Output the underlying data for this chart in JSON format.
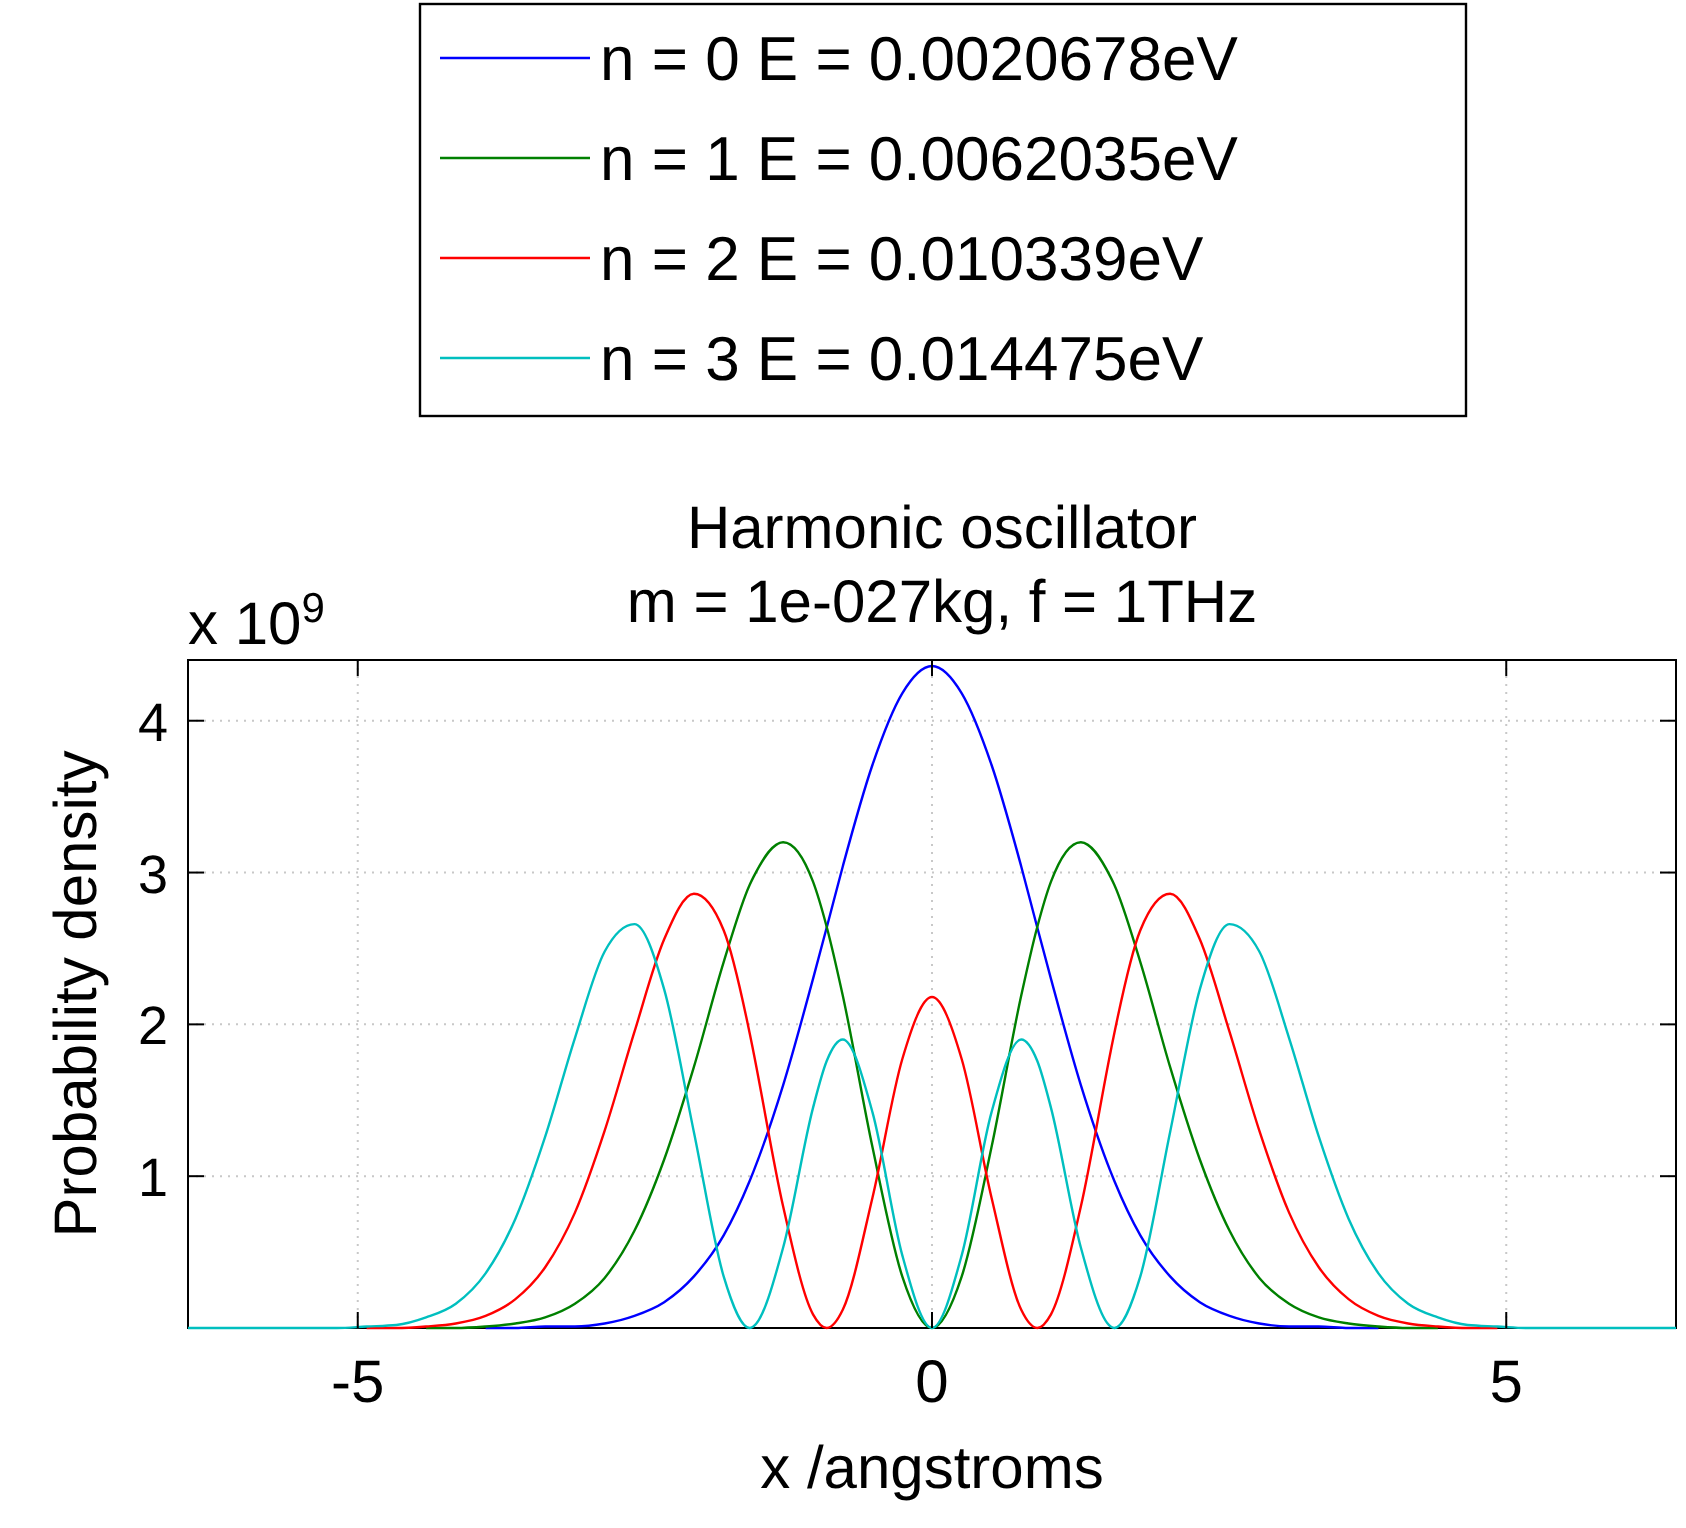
{
  "chart_data": {
    "type": "line",
    "title": "Harmonic oscillator",
    "subtitle": "m = 1e-027kg, f = 1THz",
    "xlabel": "x /angstroms",
    "ylabel": "Probability density",
    "annotations": [
      "x 10$^{9}$"
    ],
    "x": [
      -6.478,
      -5.182,
      -4.923,
      -4.664,
      -4.405,
      -4.146,
      -3.887,
      -3.627,
      -3.368,
      -3.109,
      -2.85,
      -2.591,
      -2.332,
      -2.073,
      -1.814,
      -1.587,
      -1.555,
      -1.296,
      -1.036,
      -0.916,
      -0.777,
      -0.518,
      -0.259,
      0,
      0.259,
      0.518,
      0.777,
      0.916,
      1.036,
      1.296,
      1.555,
      1.587,
      1.814,
      2.073,
      2.332,
      2.591,
      2.85,
      3.109,
      3.368,
      3.627,
      3.887,
      4.146,
      4.405,
      4.664,
      4.923,
      5.182,
      6.478
    ],
    "series": [
      {
        "name": "n = 0 E = 0.0020678eV",
        "color": "#0000ff",
        "values": [
          null,
          null,
          null,
          null,
          null,
          null,
          0,
          0,
          0.01,
          0.01,
          0.03,
          0.08,
          0.17,
          0.34,
          0.61,
          0.97,
          1.03,
          1.6,
          2.3,
          2.64,
          3.04,
          3.71,
          4.18,
          4.36,
          4.18,
          3.71,
          3.04,
          2.64,
          2.3,
          1.6,
          1.03,
          0.97,
          0.61,
          0.34,
          0.17,
          0.08,
          0.03,
          0.01,
          0.01,
          0,
          0,
          null,
          null,
          null,
          null,
          null,
          null
        ]
      },
      {
        "name": "n = 1 E = 0.0062035eV",
        "color": "#008000",
        "values": [
          null,
          null,
          null,
          null,
          0,
          0,
          0.01,
          0.03,
          0.07,
          0.16,
          0.33,
          0.64,
          1.11,
          1.72,
          2.41,
          2.92,
          2.97,
          3.2,
          2.94,
          2.64,
          2.19,
          1.19,
          0.34,
          0,
          0.34,
          1.19,
          2.19,
          2.64,
          2.94,
          3.2,
          2.97,
          2.92,
          2.41,
          1.72,
          1.11,
          0.64,
          0.33,
          0.16,
          0.07,
          0.03,
          0.01,
          0,
          0,
          null,
          null,
          null,
          null
        ]
      },
      {
        "name": "n = 2 E = 0.010339eV",
        "color": "#ff0000",
        "values": [
          null,
          null,
          0,
          0,
          0.01,
          0.03,
          0.08,
          0.19,
          0.4,
          0.76,
          1.3,
          1.95,
          2.56,
          2.86,
          2.62,
          1.94,
          1.82,
          0.8,
          0.09,
          0,
          0.12,
          0.86,
          1.77,
          2.18,
          1.77,
          0.86,
          0.12,
          0,
          0.09,
          0.8,
          1.82,
          1.94,
          2.62,
          2.86,
          2.56,
          1.95,
          1.3,
          0.76,
          0.4,
          0.19,
          0.08,
          0.03,
          0.01,
          0,
          0,
          null,
          null
        ]
      },
      {
        "name": "n = 3 E = 0.014475eV",
        "color": "#00bfbf",
        "values": [
          0,
          0,
          0.01,
          0.02,
          0.07,
          0.16,
          0.36,
          0.72,
          1.26,
          1.91,
          2.48,
          2.66,
          2.23,
          1.29,
          0.34,
          0,
          0.01,
          0.53,
          1.45,
          1.76,
          1.9,
          1.42,
          0.48,
          0,
          0.48,
          1.42,
          1.9,
          1.76,
          1.45,
          0.53,
          0.01,
          0,
          0.34,
          1.29,
          2.23,
          2.66,
          2.48,
          1.91,
          1.26,
          0.72,
          0.36,
          0.16,
          0.07,
          0.02,
          0.01,
          0,
          0
        ]
      }
    ],
    "xlim": [
      -6.478,
      6.478
    ],
    "ylim": [
      0,
      4.4
    ],
    "xticks": [
      -5,
      0,
      5
    ],
    "yticks": [
      1,
      2,
      3,
      4
    ],
    "grid": true,
    "legend": "top",
    "line_style": "solid",
    "marker": "none"
  }
}
